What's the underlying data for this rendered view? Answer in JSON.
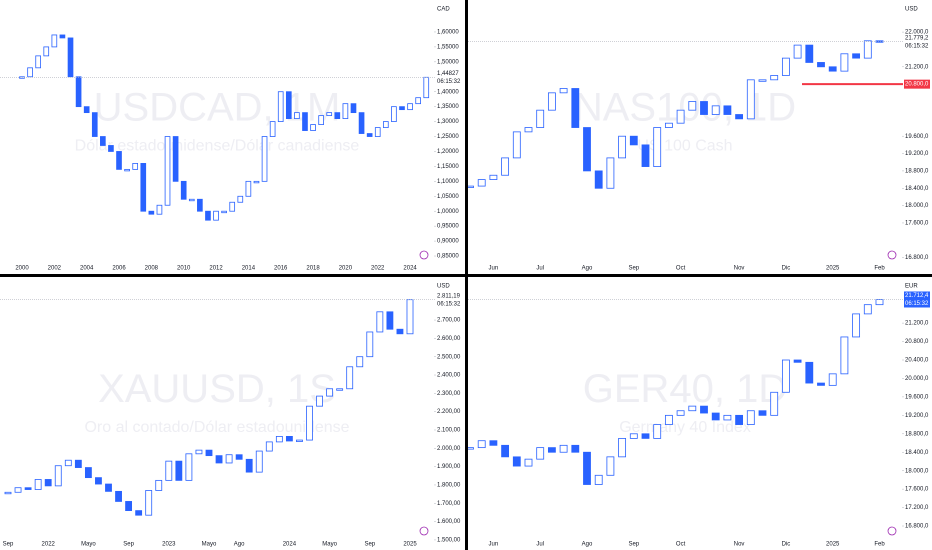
{
  "chart_data": [
    {
      "type": "candlestick",
      "title": "USDCAD, 1M",
      "subtitle": "Dólar estadounidense/Dólar canadiense",
      "currency": "CAD",
      "color": "#2962ff",
      "categories": [
        "2000",
        null,
        null,
        null,
        "2002",
        null,
        null,
        null,
        "2004",
        null,
        null,
        null,
        "2006",
        null,
        null,
        null,
        "2008",
        null,
        null,
        null,
        "2010",
        null,
        null,
        null,
        "2012",
        null,
        null,
        null,
        "2014",
        null,
        null,
        null,
        "2016",
        null,
        null,
        null,
        "2018",
        null,
        null,
        null,
        "2020",
        null,
        null,
        null,
        "2022",
        null,
        null,
        null,
        "2024",
        null,
        null
      ],
      "values": [
        1.45,
        1.48,
        1.52,
        1.55,
        1.59,
        1.58,
        1.45,
        1.35,
        1.33,
        1.25,
        1.22,
        1.2,
        1.14,
        1.14,
        1.16,
        1.0,
        0.99,
        1.02,
        1.25,
        1.1,
        1.04,
        1.04,
        1.0,
        0.97,
        1.0,
        1.0,
        1.03,
        1.05,
        1.1,
        1.1,
        1.25,
        1.3,
        1.4,
        1.31,
        1.33,
        1.27,
        1.29,
        1.32,
        1.33,
        1.31,
        1.36,
        1.33,
        1.26,
        1.25,
        1.28,
        1.3,
        1.35,
        1.34,
        1.36,
        1.38,
        1.44827
      ],
      "price_label": "1,44827",
      "countdown": "06:15:32",
      "ylim": [
        0.83,
        1.707
      ],
      "yticks": [
        {
          "value": 0.85,
          "label": "0,85000"
        },
        {
          "value": 0.9,
          "label": "0,90000"
        },
        {
          "value": 0.95,
          "label": "0,95000"
        },
        {
          "value": 1.0,
          "label": "1,00000"
        },
        {
          "value": 1.05,
          "label": "1,05000"
        },
        {
          "value": 1.1,
          "label": "1,10000"
        },
        {
          "value": 1.15,
          "label": "1,15000"
        },
        {
          "value": 1.2,
          "label": "1,20000"
        },
        {
          "value": 1.25,
          "label": "1,25000"
        },
        {
          "value": 1.3,
          "label": "1,30000"
        },
        {
          "value": 1.35,
          "label": "1,35000"
        },
        {
          "value": 1.4,
          "label": "1,40000"
        },
        {
          "value": 1.5,
          "label": "1,50000"
        },
        {
          "value": 1.55,
          "label": "1,55000"
        },
        {
          "value": 1.6,
          "label": "1,60000"
        }
      ]
    },
    {
      "type": "candlestick",
      "title": "NAS100, 1D",
      "subtitle": "US 100 Cash",
      "currency": "USD",
      "color": "#2962ff",
      "categories": [
        null,
        null,
        "Jun",
        null,
        null,
        null,
        "Jul",
        null,
        null,
        null,
        "Ago",
        null,
        null,
        null,
        "Sep",
        null,
        null,
        null,
        "Oct",
        null,
        null,
        null,
        null,
        "Nov",
        null,
        null,
        null,
        "Dic",
        null,
        null,
        null,
        "2025",
        null,
        null,
        null,
        "Feb"
      ],
      "values": [
        18450,
        18600,
        18700,
        19100,
        19700,
        19800,
        20200,
        20600,
        20700,
        19800,
        18800,
        18400,
        19100,
        19600,
        19400,
        18900,
        19800,
        19900,
        20200,
        20400,
        20100,
        20300,
        20100,
        20000,
        20900,
        20900,
        21000,
        21400,
        21700,
        21300,
        21200,
        21100,
        21500,
        21400,
        21800,
        21779.2
      ],
      "price_label": "21.779,2",
      "countdown": "06:15:32",
      "level": {
        "value": 20800,
        "label": "20.800,0",
        "color": "#f23645"
      },
      "ylim": [
        16700,
        22740
      ],
      "yticks": [
        {
          "value": 16800,
          "label": "16.800,0"
        },
        {
          "value": 17600,
          "label": "17.600,0"
        },
        {
          "value": 18000,
          "label": "18.000,0"
        },
        {
          "value": 18400,
          "label": "18.400,0"
        },
        {
          "value": 18800,
          "label": "18.800,0"
        },
        {
          "value": 19200,
          "label": "19.200,0"
        },
        {
          "value": 19600,
          "label": "19.600,0"
        },
        {
          "value": 21200,
          "label": "21.200,0"
        },
        {
          "value": 22000,
          "label": "22.000,0"
        }
      ]
    },
    {
      "type": "candlestick",
      "title": "XAUUSD, 1S",
      "subtitle": "Oro al contado/Dólar estadounidense",
      "currency": "USD",
      "color": "#2962ff",
      "categories": [
        "Sep",
        null,
        null,
        null,
        "2022",
        null,
        null,
        null,
        "Mayo",
        null,
        null,
        null,
        "Sep",
        null,
        null,
        null,
        "2023",
        null,
        null,
        null,
        "Mayo",
        null,
        null,
        "Ago",
        null,
        null,
        null,
        null,
        "2024",
        null,
        null,
        null,
        "Mayo",
        null,
        null,
        null,
        "Sep",
        null,
        null,
        null,
        "2025"
      ],
      "values": [
        1760,
        1785,
        1775,
        1830,
        1795,
        1905,
        1935,
        1895,
        1840,
        1805,
        1765,
        1710,
        1660,
        1635,
        1770,
        1825,
        1930,
        1825,
        1970,
        1990,
        1960,
        1920,
        1965,
        1940,
        1870,
        1985,
        2035,
        2065,
        2040,
        2045,
        2230,
        2285,
        2325,
        2325,
        2445,
        2500,
        2635,
        2745,
        2650,
        2625,
        2811.19
      ],
      "price_label": "2.811,19",
      "countdown": "06:15:32",
      "ylim": [
        1445,
        2935
      ],
      "yticks": [
        {
          "value": 1500,
          "label": "1.500,00"
        },
        {
          "value": 1600,
          "label": "1.600,00"
        },
        {
          "value": 1700,
          "label": "1.700,00"
        },
        {
          "value": 1800,
          "label": "1.800,00"
        },
        {
          "value": 1900,
          "label": "1.900,00"
        },
        {
          "value": 2000,
          "label": "2.000,00"
        },
        {
          "value": 2100,
          "label": "2.100,00"
        },
        {
          "value": 2200,
          "label": "2.200,00"
        },
        {
          "value": 2300,
          "label": "2.300,00"
        },
        {
          "value": 2400,
          "label": "2.400,00"
        },
        {
          "value": 2500,
          "label": "2.500,00"
        },
        {
          "value": 2600,
          "label": "2.600,00"
        },
        {
          "value": 2700,
          "label": "2.700,00"
        }
      ]
    },
    {
      "type": "candlestick",
      "title": "GER40, 1D",
      "subtitle": "Germany 40 Index",
      "currency": "EUR",
      "color": "#2962ff",
      "categories": [
        null,
        null,
        "Jun",
        null,
        null,
        null,
        "Jul",
        null,
        null,
        null,
        "Ago",
        null,
        null,
        null,
        "Sep",
        null,
        null,
        null,
        "Oct",
        null,
        null,
        null,
        null,
        "Nov",
        null,
        null,
        null,
        "Dic",
        null,
        null,
        null,
        "2025",
        null,
        null,
        null,
        "Feb"
      ],
      "values": [
        18500,
        18650,
        18550,
        18300,
        18100,
        18250,
        18500,
        18400,
        18550,
        18400,
        17700,
        17900,
        18300,
        18700,
        18800,
        18700,
        19000,
        19200,
        19300,
        19400,
        19250,
        19100,
        19200,
        19000,
        19300,
        19200,
        19700,
        20400,
        20350,
        19900,
        19850,
        20100,
        20900,
        21400,
        21600,
        21712.4
      ],
      "price_label": "21.712,4",
      "countdown": "06:15:32",
      "price_label_color": "#2962ff",
      "ylim": [
        16280,
        22200
      ],
      "yticks": [
        {
          "value": 16800,
          "label": "16.800,0"
        },
        {
          "value": 17200,
          "label": "17.200,0"
        },
        {
          "value": 17600,
          "label": "17.600,0"
        },
        {
          "value": 18000,
          "label": "18.000,0"
        },
        {
          "value": 18400,
          "label": "18.400,0"
        },
        {
          "value": 18800,
          "label": "18.800,0"
        },
        {
          "value": 19200,
          "label": "19.200,0"
        },
        {
          "value": 19600,
          "label": "19.600,0"
        },
        {
          "value": 20000,
          "label": "20.000,0"
        },
        {
          "value": 20400,
          "label": "20.400,0"
        },
        {
          "value": 20800,
          "label": "20.800,0"
        },
        {
          "value": 21200,
          "label": "21.200,0"
        }
      ]
    }
  ]
}
